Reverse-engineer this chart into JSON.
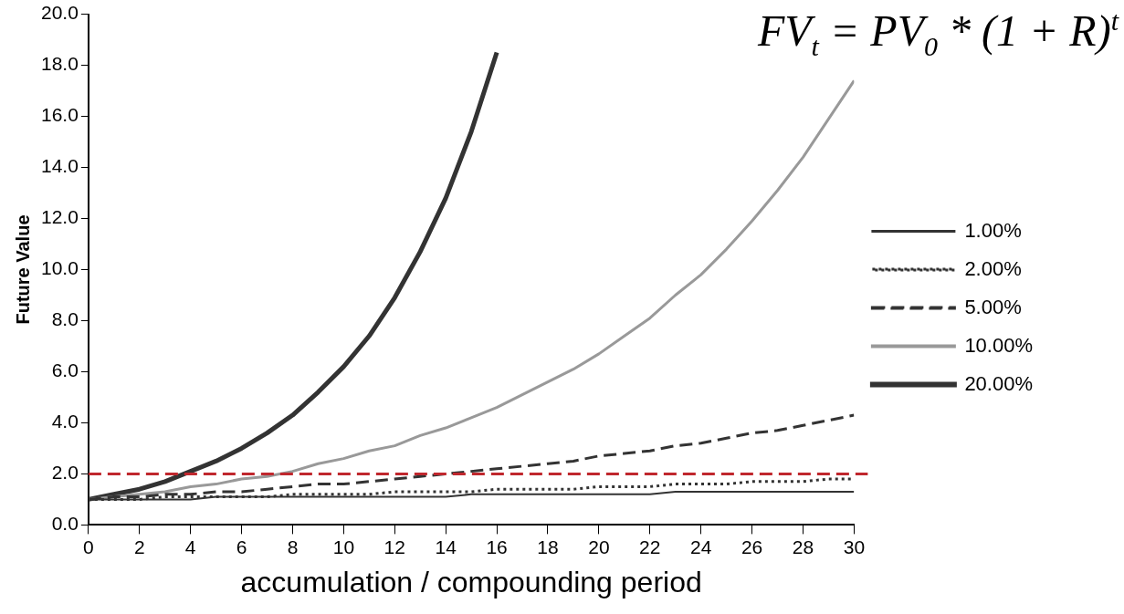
{
  "chart_data": {
    "type": "line",
    "xlabel": "accumulation / compounding period",
    "ylabel": "Future Value",
    "annotations": [
      "FV$_{t}$ = PV$_{0}$ * (1 + R)$^{t}$"
    ],
    "x": [
      0,
      1,
      2,
      3,
      4,
      5,
      6,
      7,
      8,
      9,
      10,
      11,
      12,
      13,
      14,
      15,
      16,
      17,
      18,
      19,
      20,
      21,
      22,
      23,
      24,
      25,
      26,
      27,
      28,
      29,
      30
    ],
    "series": [
      {
        "name": "1.00%",
        "color": "#333333",
        "line_style": "solid",
        "values": [
          1.0,
          1.0,
          1.0,
          1.0,
          1.0,
          1.1,
          1.1,
          1.1,
          1.1,
          1.1,
          1.1,
          1.1,
          1.1,
          1.1,
          1.1,
          1.2,
          1.2,
          1.2,
          1.2,
          1.2,
          1.2,
          1.2,
          1.2,
          1.3,
          1.3,
          1.3,
          1.3,
          1.3,
          1.3,
          1.3,
          1.3
        ]
      },
      {
        "name": "2.00%",
        "color": "#333333",
        "line_style": "dotted",
        "values": [
          1.0,
          1.0,
          1.0,
          1.1,
          1.1,
          1.1,
          1.1,
          1.1,
          1.2,
          1.2,
          1.2,
          1.2,
          1.3,
          1.3,
          1.3,
          1.3,
          1.4,
          1.4,
          1.4,
          1.4,
          1.5,
          1.5,
          1.5,
          1.6,
          1.6,
          1.6,
          1.7,
          1.7,
          1.7,
          1.8,
          1.8
        ]
      },
      {
        "name": "5.00%",
        "color": "#333333",
        "line_style": "dashed",
        "values": [
          1.0,
          1.1,
          1.1,
          1.2,
          1.2,
          1.3,
          1.3,
          1.4,
          1.5,
          1.6,
          1.6,
          1.7,
          1.8,
          1.9,
          2.0,
          2.1,
          2.2,
          2.3,
          2.4,
          2.5,
          2.7,
          2.8,
          2.9,
          3.1,
          3.2,
          3.4,
          3.6,
          3.7,
          3.9,
          4.1,
          4.3
        ]
      },
      {
        "name": "10.00%",
        "color": "#999999",
        "line_style": "solid",
        "values": [
          1.0,
          1.1,
          1.2,
          1.3,
          1.5,
          1.6,
          1.8,
          1.9,
          2.1,
          2.4,
          2.6,
          2.9,
          3.1,
          3.5,
          3.8,
          4.2,
          4.6,
          5.1,
          5.6,
          6.1,
          6.7,
          7.4,
          8.1,
          9.0,
          9.8,
          10.8,
          11.9,
          13.1,
          14.4,
          15.9,
          17.4
        ]
      },
      {
        "name": "20.00%",
        "color": "#333333",
        "line_style": "solid",
        "values": [
          1.0,
          1.2,
          1.4,
          1.7,
          2.1,
          2.5,
          3.0,
          3.6,
          4.3,
          5.2,
          6.2,
          7.4,
          8.9,
          10.7,
          12.8,
          15.4,
          18.5,
          null,
          null,
          null,
          null,
          null,
          null,
          null,
          null,
          null,
          null,
          null,
          null,
          null,
          null
        ]
      }
    ],
    "xlim": [
      0,
      30
    ],
    "xticks": [
      0,
      2,
      4,
      6,
      8,
      10,
      12,
      14,
      16,
      18,
      20,
      22,
      24,
      26,
      28,
      30
    ],
    "ylim": [
      0,
      20
    ],
    "yticks": [
      {
        "value": 0,
        "label": "0.0"
      },
      {
        "value": 2,
        "label": "2.0"
      },
      {
        "value": 4,
        "label": "4.0"
      },
      {
        "value": 6,
        "label": "6.0"
      },
      {
        "value": 8,
        "label": "8.0"
      },
      {
        "value": 10,
        "label": "10.0"
      },
      {
        "value": 12,
        "label": "12.0"
      },
      {
        "value": 14,
        "label": "14.0"
      },
      {
        "value": 16,
        "label": "16.0"
      },
      {
        "value": 18,
        "label": "18.0"
      },
      {
        "value": 20,
        "label": "20.0"
      }
    ],
    "ref_lines": [
      {
        "axis": "y",
        "value": 2,
        "color": "#c0272d",
        "line_style": "dashed"
      }
    ],
    "grid": false,
    "legend": "right",
    "marker": "none"
  }
}
